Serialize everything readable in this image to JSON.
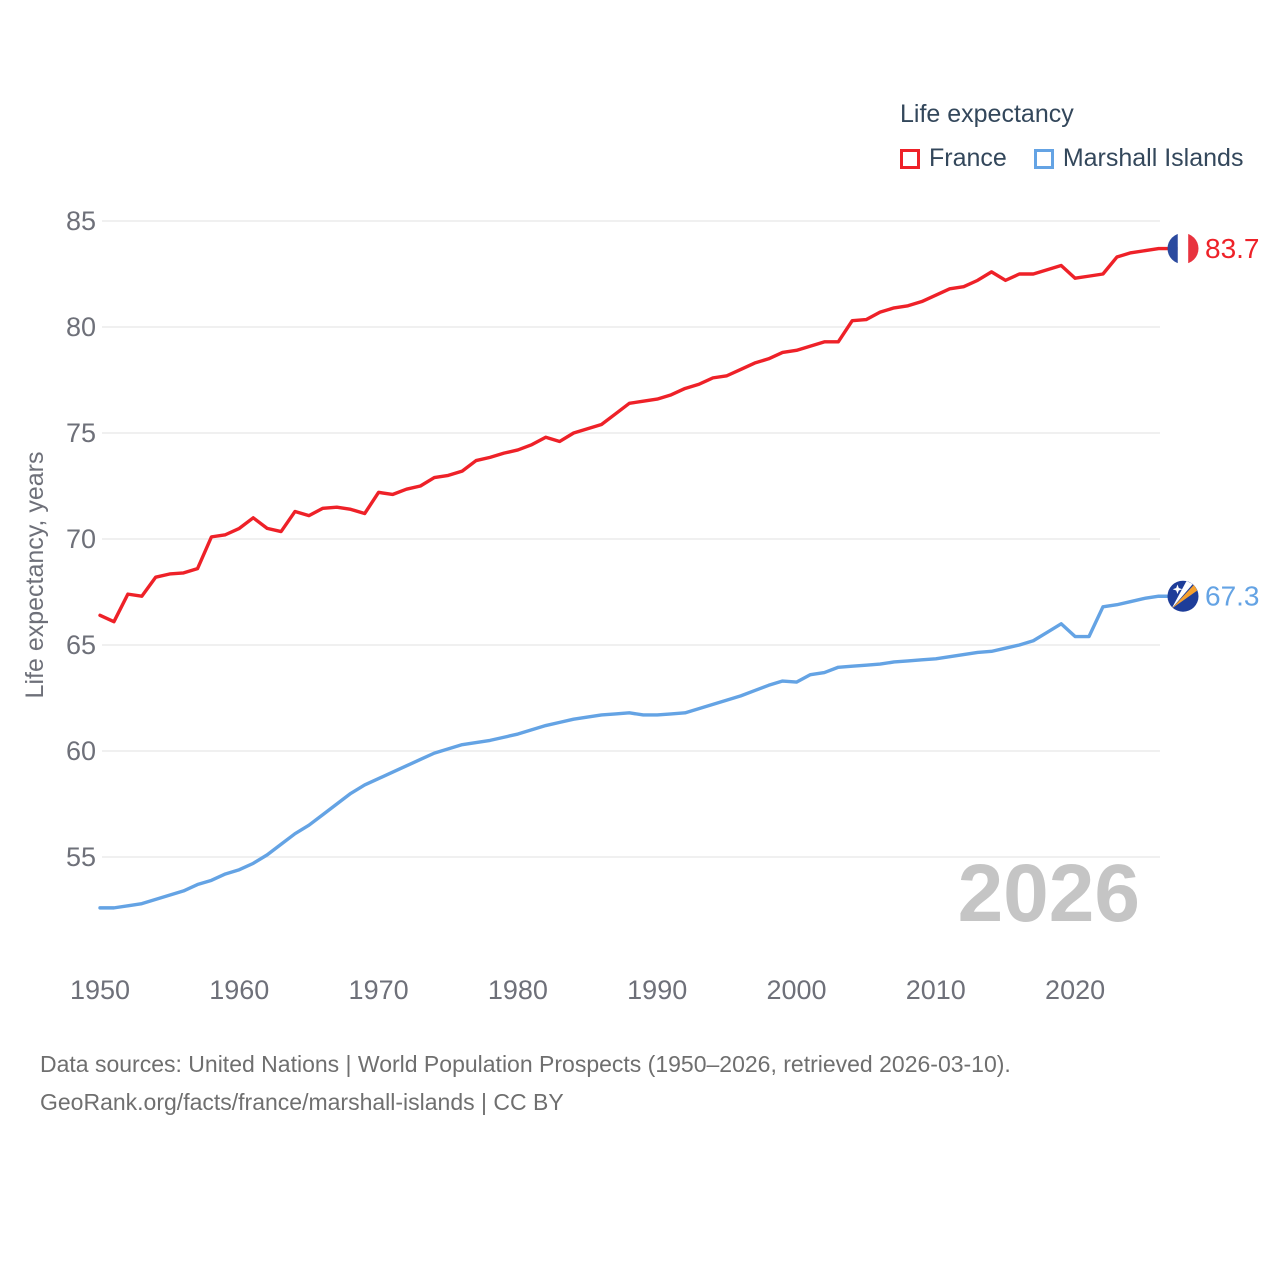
{
  "legend": {
    "title": "Life expectancy"
  },
  "chart_data": {
    "type": "line",
    "title": "Life expectancy",
    "xlabel": "",
    "ylabel": "Life expectancy, years",
    "x_start": 1950,
    "x_end": 2026,
    "xticks": [
      1950,
      1960,
      1970,
      1980,
      1990,
      2000,
      2010,
      2020
    ],
    "yticks": [
      55,
      60,
      65,
      70,
      75,
      80,
      85
    ],
    "ylim": [
      52,
      86
    ],
    "grid": "horizontal",
    "legend_position": "top-right",
    "watermark": "2026",
    "series": [
      {
        "name": "France",
        "color": "#ee2128",
        "end_label": "83.7",
        "flag_icon": "france-flag-icon",
        "flag_colors": {
          "blue": "#2b4a9f",
          "white": "#ffffff",
          "red": "#e8333f"
        },
        "values": [
          66.4,
          66.1,
          67.4,
          67.3,
          68.2,
          68.35,
          68.4,
          68.6,
          70.1,
          70.2,
          70.5,
          71.0,
          70.5,
          70.35,
          71.3,
          71.1,
          71.45,
          71.5,
          71.4,
          71.2,
          72.2,
          72.1,
          72.35,
          72.5,
          72.9,
          73.0,
          73.2,
          73.7,
          73.85,
          74.05,
          74.2,
          74.45,
          74.8,
          74.6,
          75.0,
          75.2,
          75.4,
          75.9,
          76.4,
          76.5,
          76.6,
          76.8,
          77.1,
          77.3,
          77.6,
          77.7,
          78.0,
          78.3,
          78.5,
          78.8,
          78.9,
          79.1,
          79.3,
          79.3,
          80.3,
          80.35,
          80.7,
          80.9,
          81.0,
          81.2,
          81.5,
          81.8,
          81.9,
          82.2,
          82.6,
          82.2,
          82.5,
          82.5,
          82.7,
          82.9,
          82.3,
          82.4,
          82.5,
          83.3,
          83.5,
          83.6,
          83.7
        ]
      },
      {
        "name": "Marshall Islands",
        "color": "#64a3e4",
        "end_label": "67.3",
        "flag_icon": "marshall-islands-flag-icon",
        "flag_colors": {
          "blue": "#1e3d99",
          "orange": "#f5a02e",
          "white": "#ffffff"
        },
        "values": [
          52.6,
          52.6,
          52.7,
          52.8,
          53.0,
          53.2,
          53.4,
          53.7,
          53.9,
          54.2,
          54.4,
          54.7,
          55.1,
          55.6,
          56.1,
          56.5,
          57.0,
          57.5,
          58.0,
          58.4,
          58.7,
          59.0,
          59.3,
          59.6,
          59.9,
          60.1,
          60.3,
          60.4,
          60.5,
          60.65,
          60.8,
          61.0,
          61.2,
          61.35,
          61.5,
          61.6,
          61.7,
          61.75,
          61.8,
          61.7,
          61.7,
          61.75,
          61.8,
          62.0,
          62.2,
          62.4,
          62.6,
          62.85,
          63.1,
          63.3,
          63.25,
          63.6,
          63.7,
          63.95,
          64.0,
          64.05,
          64.1,
          64.2,
          64.25,
          64.3,
          64.35,
          64.45,
          64.55,
          64.65,
          64.7,
          64.85,
          65.0,
          65.2,
          65.6,
          66.0,
          65.4,
          65.4,
          66.8,
          66.9,
          67.05,
          67.2,
          67.3
        ]
      }
    ]
  },
  "colors": {
    "text_dark": "#33475b",
    "text_gray": "#6e7079",
    "grid": "#ebebeb",
    "watermark": "#c5c5c5",
    "footer": "#6f6f6f"
  },
  "footer": {
    "line1": "Data sources: United Nations | World Population Prospects (1950–2026, retrieved 2026-03-10).",
    "line2": "GeoRank.org/facts/france/marshall-islands | CC BY"
  }
}
